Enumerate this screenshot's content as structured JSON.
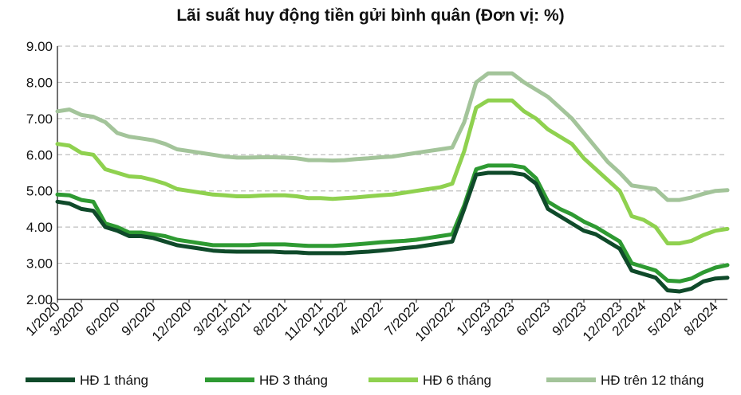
{
  "chart_data": {
    "type": "line",
    "title": "Lãi suất huy động tiền gửi bình quân (Đơn vị: %)",
    "xlabel": "",
    "ylabel": "",
    "ylim": [
      2.0,
      9.0
    ],
    "yticks": [
      "2.00",
      "3.00",
      "4.00",
      "5.00",
      "6.00",
      "7.00",
      "8.00",
      "9.00"
    ],
    "x_tick_labels": [
      "1/2020",
      "3/2020",
      "6/2020",
      "9/2020",
      "12/2020",
      "3/2021",
      "5/2021",
      "8/2021",
      "11/2021",
      "1/2022",
      "4/2022",
      "7/2022",
      "10/2022",
      "1/2023",
      "3/2023",
      "6/2023",
      "9/2023",
      "12/2023",
      "2/2024",
      "5/2024",
      "8/2024"
    ],
    "x_tick_months": [
      0,
      2,
      5,
      8,
      11,
      14,
      16,
      19,
      22,
      24,
      27,
      30,
      33,
      36,
      38,
      41,
      44,
      47,
      49,
      52,
      55
    ],
    "x_range_months": [
      0,
      56
    ],
    "grid": "horizontal-dashed",
    "legend_position": "bottom",
    "series": [
      {
        "name": "HĐ 1 tháng",
        "color": "#0f4a2a",
        "points": [
          [
            0,
            4.7
          ],
          [
            1,
            4.65
          ],
          [
            2,
            4.5
          ],
          [
            3,
            4.45
          ],
          [
            4,
            4.0
          ],
          [
            5,
            3.9
          ],
          [
            6,
            3.75
          ],
          [
            7,
            3.75
          ],
          [
            8,
            3.7
          ],
          [
            9,
            3.6
          ],
          [
            10,
            3.5
          ],
          [
            11,
            3.45
          ],
          [
            12,
            3.4
          ],
          [
            13,
            3.35
          ],
          [
            14,
            3.33
          ],
          [
            15,
            3.32
          ],
          [
            16,
            3.32
          ],
          [
            17,
            3.32
          ],
          [
            18,
            3.32
          ],
          [
            19,
            3.3
          ],
          [
            20,
            3.3
          ],
          [
            21,
            3.28
          ],
          [
            22,
            3.28
          ],
          [
            23,
            3.28
          ],
          [
            24,
            3.28
          ],
          [
            25,
            3.3
          ],
          [
            26,
            3.32
          ],
          [
            27,
            3.35
          ],
          [
            28,
            3.38
          ],
          [
            29,
            3.42
          ],
          [
            30,
            3.45
          ],
          [
            31,
            3.5
          ],
          [
            32,
            3.55
          ],
          [
            33,
            3.6
          ],
          [
            34,
            4.5
          ],
          [
            35,
            5.45
          ],
          [
            36,
            5.5
          ],
          [
            37,
            5.5
          ],
          [
            38,
            5.5
          ],
          [
            39,
            5.45
          ],
          [
            40,
            5.2
          ],
          [
            41,
            4.5
          ],
          [
            42,
            4.3
          ],
          [
            43,
            4.1
          ],
          [
            44,
            3.9
          ],
          [
            45,
            3.8
          ],
          [
            46,
            3.6
          ],
          [
            47,
            3.4
          ],
          [
            48,
            2.8
          ],
          [
            49,
            2.7
          ],
          [
            50,
            2.6
          ],
          [
            51,
            2.25
          ],
          [
            52,
            2.22
          ],
          [
            53,
            2.3
          ],
          [
            54,
            2.5
          ],
          [
            55,
            2.58
          ],
          [
            56,
            2.6
          ]
        ]
      },
      {
        "name": "HĐ 3 tháng",
        "color": "#2e9a32",
        "points": [
          [
            0,
            4.9
          ],
          [
            1,
            4.88
          ],
          [
            2,
            4.75
          ],
          [
            3,
            4.7
          ],
          [
            4,
            4.1
          ],
          [
            5,
            4.0
          ],
          [
            6,
            3.85
          ],
          [
            7,
            3.85
          ],
          [
            8,
            3.8
          ],
          [
            9,
            3.75
          ],
          [
            10,
            3.65
          ],
          [
            11,
            3.6
          ],
          [
            12,
            3.55
          ],
          [
            13,
            3.5
          ],
          [
            14,
            3.5
          ],
          [
            15,
            3.5
          ],
          [
            16,
            3.5
          ],
          [
            17,
            3.52
          ],
          [
            18,
            3.52
          ],
          [
            19,
            3.52
          ],
          [
            20,
            3.5
          ],
          [
            21,
            3.48
          ],
          [
            22,
            3.48
          ],
          [
            23,
            3.48
          ],
          [
            24,
            3.5
          ],
          [
            25,
            3.52
          ],
          [
            26,
            3.55
          ],
          [
            27,
            3.58
          ],
          [
            28,
            3.6
          ],
          [
            29,
            3.62
          ],
          [
            30,
            3.65
          ],
          [
            31,
            3.7
          ],
          [
            32,
            3.75
          ],
          [
            33,
            3.8
          ],
          [
            34,
            4.6
          ],
          [
            35,
            5.6
          ],
          [
            36,
            5.7
          ],
          [
            37,
            5.7
          ],
          [
            38,
            5.7
          ],
          [
            39,
            5.65
          ],
          [
            40,
            5.35
          ],
          [
            41,
            4.7
          ],
          [
            42,
            4.5
          ],
          [
            43,
            4.35
          ],
          [
            44,
            4.15
          ],
          [
            45,
            4.0
          ],
          [
            46,
            3.8
          ],
          [
            47,
            3.6
          ],
          [
            48,
            3.0
          ],
          [
            49,
            2.9
          ],
          [
            50,
            2.8
          ],
          [
            51,
            2.52
          ],
          [
            52,
            2.5
          ],
          [
            53,
            2.58
          ],
          [
            54,
            2.75
          ],
          [
            55,
            2.88
          ],
          [
            56,
            2.95
          ]
        ]
      },
      {
        "name": "HĐ 6 tháng",
        "color": "#8fd14f",
        "points": [
          [
            0,
            6.3
          ],
          [
            1,
            6.25
          ],
          [
            2,
            6.05
          ],
          [
            3,
            6.0
          ],
          [
            4,
            5.6
          ],
          [
            5,
            5.5
          ],
          [
            6,
            5.4
          ],
          [
            7,
            5.38
          ],
          [
            8,
            5.3
          ],
          [
            9,
            5.2
          ],
          [
            10,
            5.05
          ],
          [
            11,
            5.0
          ],
          [
            12,
            4.95
          ],
          [
            13,
            4.9
          ],
          [
            14,
            4.88
          ],
          [
            15,
            4.85
          ],
          [
            16,
            4.85
          ],
          [
            17,
            4.87
          ],
          [
            18,
            4.88
          ],
          [
            19,
            4.88
          ],
          [
            20,
            4.85
          ],
          [
            21,
            4.8
          ],
          [
            22,
            4.8
          ],
          [
            23,
            4.78
          ],
          [
            24,
            4.8
          ],
          [
            25,
            4.82
          ],
          [
            26,
            4.85
          ],
          [
            27,
            4.88
          ],
          [
            28,
            4.9
          ],
          [
            29,
            4.95
          ],
          [
            30,
            5.0
          ],
          [
            31,
            5.05
          ],
          [
            32,
            5.1
          ],
          [
            33,
            5.2
          ],
          [
            34,
            6.1
          ],
          [
            35,
            7.3
          ],
          [
            36,
            7.5
          ],
          [
            37,
            7.5
          ],
          [
            38,
            7.5
          ],
          [
            39,
            7.2
          ],
          [
            40,
            7.0
          ],
          [
            41,
            6.7
          ],
          [
            42,
            6.5
          ],
          [
            43,
            6.3
          ],
          [
            44,
            5.9
          ],
          [
            45,
            5.6
          ],
          [
            46,
            5.3
          ],
          [
            47,
            5.0
          ],
          [
            48,
            4.3
          ],
          [
            49,
            4.2
          ],
          [
            50,
            4.0
          ],
          [
            51,
            3.55
          ],
          [
            52,
            3.55
          ],
          [
            53,
            3.62
          ],
          [
            54,
            3.78
          ],
          [
            55,
            3.9
          ],
          [
            56,
            3.95
          ]
        ]
      },
      {
        "name": "HĐ trên 12 tháng",
        "color": "#a3c49a",
        "points": [
          [
            0,
            7.2
          ],
          [
            1,
            7.25
          ],
          [
            2,
            7.1
          ],
          [
            3,
            7.05
          ],
          [
            4,
            6.9
          ],
          [
            5,
            6.6
          ],
          [
            6,
            6.5
          ],
          [
            7,
            6.45
          ],
          [
            8,
            6.4
          ],
          [
            9,
            6.3
          ],
          [
            10,
            6.15
          ],
          [
            11,
            6.1
          ],
          [
            12,
            6.05
          ],
          [
            13,
            6.0
          ],
          [
            14,
            5.95
          ],
          [
            15,
            5.92
          ],
          [
            16,
            5.92
          ],
          [
            17,
            5.93
          ],
          [
            18,
            5.93
          ],
          [
            19,
            5.92
          ],
          [
            20,
            5.9
          ],
          [
            21,
            5.85
          ],
          [
            22,
            5.85
          ],
          [
            23,
            5.84
          ],
          [
            24,
            5.85
          ],
          [
            25,
            5.88
          ],
          [
            26,
            5.9
          ],
          [
            27,
            5.93
          ],
          [
            28,
            5.95
          ],
          [
            29,
            6.0
          ],
          [
            30,
            6.05
          ],
          [
            31,
            6.1
          ],
          [
            32,
            6.15
          ],
          [
            33,
            6.2
          ],
          [
            34,
            6.9
          ],
          [
            35,
            8.0
          ],
          [
            36,
            8.25
          ],
          [
            37,
            8.25
          ],
          [
            38,
            8.25
          ],
          [
            39,
            8.0
          ],
          [
            40,
            7.8
          ],
          [
            41,
            7.6
          ],
          [
            42,
            7.3
          ],
          [
            43,
            7.0
          ],
          [
            44,
            6.6
          ],
          [
            45,
            6.2
          ],
          [
            46,
            5.8
          ],
          [
            47,
            5.5
          ],
          [
            48,
            5.15
          ],
          [
            49,
            5.1
          ],
          [
            50,
            5.05
          ],
          [
            51,
            4.75
          ],
          [
            52,
            4.75
          ],
          [
            53,
            4.82
          ],
          [
            54,
            4.92
          ],
          [
            55,
            5.0
          ],
          [
            56,
            5.02
          ]
        ]
      }
    ]
  }
}
